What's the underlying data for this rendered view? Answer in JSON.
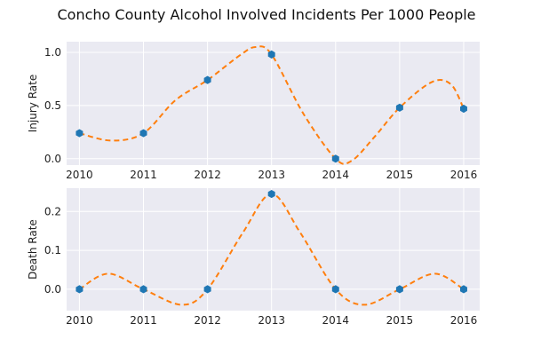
{
  "title": "Concho County Alcohol Involved Incidents Per 1000 People",
  "chart_data": [
    {
      "type": "line",
      "ylabel": "Injury Rate",
      "x": [
        "2010",
        "2011",
        "2012",
        "2013",
        "2014",
        "2015",
        "2016"
      ],
      "values": [
        0.24,
        0.24,
        0.74,
        0.98,
        0.0,
        0.48,
        0.47
      ],
      "smooth_curve_values": [
        0.24,
        0.17,
        0.24,
        0.55,
        0.74,
        0.97,
        1.05,
        0.98,
        0.42,
        0.0,
        -0.02,
        0.2,
        0.48,
        0.72,
        0.7,
        0.47
      ],
      "smooth_curve_x": [
        2010,
        2010.5,
        2011,
        2011.5,
        2012,
        2012.5,
        2012.75,
        2013,
        2013.5,
        2014,
        2014.25,
        2014.6,
        2015,
        2015.5,
        2015.8,
        2016
      ],
      "ylim": [
        -0.06,
        1.1
      ],
      "xlim": [
        2009.8,
        2016.25
      ],
      "yticks": [
        "0.0",
        "0.5",
        "1.0"
      ],
      "ytick_values": [
        0.0,
        0.5,
        1.0
      ],
      "grid": true
    },
    {
      "type": "line",
      "ylabel": "Death Rate",
      "x": [
        "2010",
        "2011",
        "2012",
        "2013",
        "2014",
        "2015",
        "2016"
      ],
      "values": [
        0.0,
        0.0,
        0.0,
        0.245,
        0.0,
        0.0,
        0.0
      ],
      "smooth_curve_values": [
        0.0,
        0.04,
        0.0,
        -0.04,
        0.0,
        0.145,
        0.245,
        0.145,
        0.0,
        -0.04,
        0.0,
        0.04,
        0.0
      ],
      "smooth_curve_x": [
        2010,
        2010.45,
        2011,
        2011.6,
        2012,
        2012.55,
        2013,
        2013.45,
        2014,
        2014.45,
        2015,
        2015.55,
        2016
      ],
      "ylim": [
        -0.055,
        0.26
      ],
      "xlim": [
        2009.8,
        2016.25
      ],
      "yticks": [
        "0.0",
        "0.1",
        "0.2"
      ],
      "ytick_values": [
        0.0,
        0.1,
        0.2
      ],
      "grid": true
    }
  ],
  "colors": {
    "points": "#1f77b4",
    "curve": "#ff7f0e"
  }
}
